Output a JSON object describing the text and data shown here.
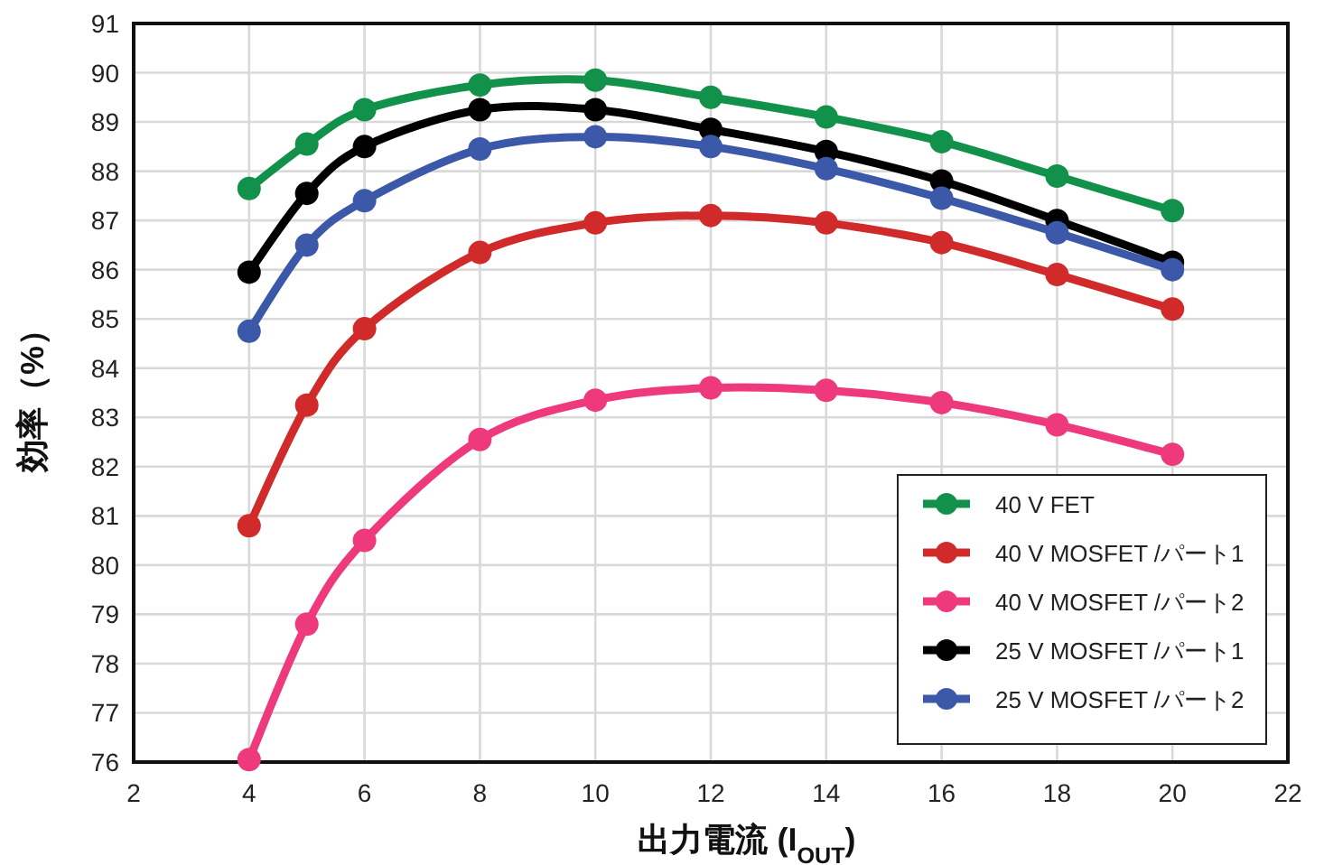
{
  "chart_data": {
    "type": "line",
    "xlabel": "出力電流 (I$_{OUT}$)",
    "ylabel": "効率（%）",
    "x": [
      4,
      5,
      6,
      8,
      10,
      12,
      14,
      16,
      18,
      20
    ],
    "xlim": [
      2,
      22
    ],
    "xticks": [
      2,
      4,
      6,
      8,
      10,
      12,
      14,
      16,
      18,
      20,
      22
    ],
    "ylim": [
      76,
      91
    ],
    "yticks": [
      76,
      77,
      78,
      79,
      80,
      81,
      82,
      83,
      84,
      85,
      86,
      87,
      88,
      89,
      90,
      91
    ],
    "grid": true,
    "legend": "bottom right",
    "marker": "circle",
    "line_style": "solid",
    "series": [
      {
        "name": "40 V FET",
        "color": "#11914a",
        "values": [
          87.65,
          88.55,
          89.25,
          89.75,
          89.85,
          89.5,
          89.1,
          88.6,
          87.9,
          87.2
        ]
      },
      {
        "name": "40 V MOSFET /パート1",
        "color": "#d02a2a",
        "values": [
          80.8,
          83.25,
          84.8,
          86.35,
          86.95,
          87.1,
          86.95,
          86.55,
          85.9,
          85.2
        ]
      },
      {
        "name": "40 V MOSFET /パート2",
        "color": "#ee3a7d",
        "values": [
          76.05,
          78.8,
          80.5,
          82.55,
          83.35,
          83.6,
          83.55,
          83.3,
          82.85,
          82.25
        ]
      },
      {
        "name": "25 V MOSFET /パート1",
        "color": "#000000",
        "values": [
          85.95,
          87.55,
          88.5,
          89.25,
          89.25,
          88.85,
          88.4,
          87.8,
          87.0,
          86.15
        ]
      },
      {
        "name": "25 V MOSFET /パート2",
        "color": "#3c58a8",
        "values": [
          84.75,
          86.5,
          87.4,
          88.45,
          88.7,
          88.5,
          88.05,
          87.45,
          86.75,
          86.0
        ]
      }
    ]
  }
}
